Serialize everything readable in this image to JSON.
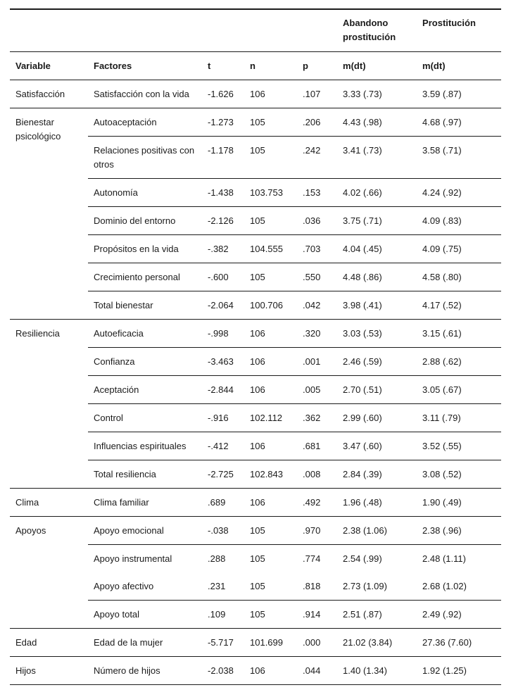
{
  "table": {
    "group_headers": [
      "Abandono prostitución",
      "Prostitución"
    ],
    "columns": [
      "Variable",
      "Factores",
      "t",
      "n",
      "p",
      "m(dt)",
      "m(dt)"
    ],
    "groups": [
      {
        "variable": "Satisfacción",
        "rows": [
          {
            "factor": "Satisfacción con la vida",
            "t": "-1.626",
            "n": "106",
            "p": ".107",
            "m_abandono": "3.33 (.73)",
            "m_prostitucion": "3.59 (.87)"
          }
        ]
      },
      {
        "variable": "Bienestar psicológico",
        "rows": [
          {
            "factor": "Autoaceptación",
            "t": "-1.273",
            "n": "105",
            "p": ".206",
            "m_abandono": "4.43 (.98)",
            "m_prostitucion": "4.68 (.97)"
          },
          {
            "factor": "Relaciones positivas con otros",
            "t": "-1.178",
            "n": "105",
            "p": ".242",
            "m_abandono": "3.41 (.73)",
            "m_prostitucion": "3.58 (.71)"
          },
          {
            "factor": "Autonomía",
            "t": "-1.438",
            "n": "103.753",
            "p": ".153",
            "m_abandono": "4.02 (.66)",
            "m_prostitucion": "4.24 (.92)"
          },
          {
            "factor": "Dominio del entorno",
            "t": "-2.126",
            "n": "105",
            "p": ".036",
            "m_abandono": "3.75 (.71)",
            "m_prostitucion": "4.09 (.83)"
          },
          {
            "factor": "Propósitos en la vida",
            "t": "-.382",
            "n": "104.555",
            "p": ".703",
            "m_abandono": "4.04 (.45)",
            "m_prostitucion": "4.09 (.75)"
          },
          {
            "factor": "Crecimiento personal",
            "t": "-.600",
            "n": "105",
            "p": ".550",
            "m_abandono": "4.48 (.86)",
            "m_prostitucion": "4.58 (.80)"
          },
          {
            "factor": "Total bienestar",
            "t": "-2.064",
            "n": "100.706",
            "p": ".042",
            "m_abandono": "3.98 (.41)",
            "m_prostitucion": "4.17 (.52)"
          }
        ]
      },
      {
        "variable": "Resiliencia",
        "rows": [
          {
            "factor": "Autoeficacia",
            "t": "-.998",
            "n": "106",
            "p": ".320",
            "m_abandono": "3.03 (.53)",
            "m_prostitucion": "3.15 (.61)"
          },
          {
            "factor": "Confianza",
            "t": "-3.463",
            "n": "106",
            "p": ".001",
            "m_abandono": "2.46 (.59)",
            "m_prostitucion": "2.88 (.62)"
          },
          {
            "factor": "Aceptación",
            "t": "-2.844",
            "n": "106",
            "p": ".005",
            "m_abandono": "2.70 (.51)",
            "m_prostitucion": "3.05 (.67)"
          },
          {
            "factor": "Control",
            "t": "-.916",
            "n": "102.112",
            "p": ".362",
            "m_abandono": "2.99 (.60)",
            "m_prostitucion": "3.11 (.79)"
          },
          {
            "factor": "Influencias espirituales",
            "t": "-.412",
            "n": "106",
            "p": ".681",
            "m_abandono": "3.47 (.60)",
            "m_prostitucion": "3.52 (.55)"
          },
          {
            "factor": "Total resiliencia",
            "t": "-2.725",
            "n": "102.843",
            "p": ".008",
            "m_abandono": "2.84 (.39)",
            "m_prostitucion": "3.08 (.52)"
          }
        ]
      },
      {
        "variable": "Clima",
        "rows": [
          {
            "factor": "Clima familiar",
            "t": ".689",
            "n": "106",
            "p": ".492",
            "m_abandono": "1.96 (.48)",
            "m_prostitucion": "1.90 (.49)"
          }
        ]
      },
      {
        "variable": "Apoyos",
        "rows": [
          {
            "factor": "Apoyo emocional",
            "t": "-.038",
            "n": "105",
            "p": ".970",
            "m_abandono": "2.38 (1.06)",
            "m_prostitucion": "2.38 (.96)"
          },
          {
            "factor": "Apoyo instrumental",
            "t": ".288",
            "n": "105",
            "p": ".774",
            "m_abandono": "2.54 (.99)",
            "m_prostitucion": "2.48 (1.11)",
            "separator_after": false
          },
          {
            "factor": "Apoyo afectivo",
            "t": ".231",
            "n": "105",
            "p": ".818",
            "m_abandono": "2.73 (1.09)",
            "m_prostitucion": "2.68 (1.02)"
          },
          {
            "factor": "Apoyo total",
            "t": ".109",
            "n": "105",
            "p": ".914",
            "m_abandono": "2.51 (.87)",
            "m_prostitucion": "2.49 (.92)"
          }
        ]
      },
      {
        "variable": "Edad",
        "rows": [
          {
            "factor": "Edad de la mujer",
            "t": "-5.717",
            "n": "101.699",
            "p": ".000",
            "m_abandono": "21.02 (3.84)",
            "m_prostitucion": "27.36 (7.60)"
          }
        ]
      },
      {
        "variable": "Hijos",
        "rows": [
          {
            "factor": "Número de hijos",
            "t": "-2.038",
            "n": "106",
            "p": ".044",
            "m_abandono": "1.40 (1.34)",
            "m_prostitucion": "1.92 (1.25)"
          }
        ]
      }
    ]
  },
  "colors": {
    "text": "#1b1b1b",
    "rule": "#1b1b1b",
    "background": "#ffffff"
  }
}
